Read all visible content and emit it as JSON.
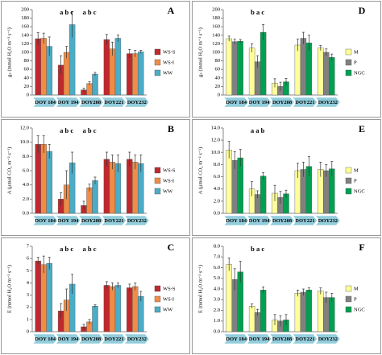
{
  "chart_data": [
    {
      "type": "bar",
      "label": "A",
      "y_label": "gₛ (mmol H₂O m⁻² s⁻¹)",
      "categories": [
        "DOY 184",
        "DOY 194",
        "DOY208",
        "DOY221",
        "DOY232"
      ],
      "series": [
        {
          "name": "WS-S",
          "color": "#c0282d",
          "values": [
            132,
            70,
            12,
            130,
            97
          ],
          "errors": [
            14,
            22,
            4,
            12,
            10
          ]
        },
        {
          "name": "WS-I",
          "color": "#f08c46",
          "values": [
            133,
            100,
            27,
            108,
            97
          ],
          "errors": [
            12,
            14,
            4,
            16,
            8
          ]
        },
        {
          "name": "WW",
          "color": "#4bacc6",
          "values": [
            114,
            165,
            49,
            133,
            101
          ],
          "errors": [
            22,
            30,
            4,
            8,
            4
          ]
        }
      ],
      "ylim": [
        0,
        200
      ],
      "yticks": [
        0,
        20,
        40,
        60,
        80,
        100,
        120,
        140,
        160,
        180,
        200
      ],
      "annotations": [
        {
          "text": "a b c",
          "category": "DOY 194"
        },
        {
          "text": "a b c",
          "category": "DOY208"
        }
      ]
    },
    {
      "type": "bar",
      "label": "B",
      "y_label": "A (µmol CO₂ m⁻² s⁻¹)",
      "categories": [
        "DOY 184",
        "DOY 194",
        "DOY208",
        "DOY221",
        "DOY232"
      ],
      "series": [
        {
          "name": "WS-S",
          "color": "#c0282d",
          "values": [
            9.7,
            2.0,
            1.1,
            7.6,
            7.6
          ],
          "errors": [
            1.2,
            0.9,
            0.6,
            1.0,
            1.0
          ]
        },
        {
          "name": "WS-I",
          "color": "#f08c46",
          "values": [
            9.7,
            4.0,
            3.6,
            7.2,
            7.2
          ],
          "errors": [
            1.2,
            2.0,
            0.5,
            1.0,
            1.0
          ]
        },
        {
          "name": "WW",
          "color": "#4bacc6",
          "values": [
            8.7,
            7.1,
            4.6,
            7.0,
            7.0
          ],
          "errors": [
            1.0,
            1.5,
            0.5,
            1.2,
            1.2
          ]
        }
      ],
      "ylim": [
        0,
        12
      ],
      "yticks": [
        {
          "value": 0,
          "label": "0.0"
        },
        {
          "value": 2,
          "label": "2.0"
        },
        {
          "value": 4,
          "label": "4.0"
        },
        {
          "value": 6,
          "label": "6.0"
        },
        {
          "value": 8,
          "label": "8.0"
        },
        {
          "value": 10,
          "label": "10.0"
        },
        {
          "value": 12,
          "label": "12.0"
        }
      ],
      "annotations": [
        {
          "text": "a b c",
          "category": "DOY 194"
        },
        {
          "text": "a b c",
          "category": "DOY208"
        }
      ]
    },
    {
      "type": "bar",
      "label": "C",
      "y_label": "E (mmol H₂O m⁻² s⁻¹)",
      "categories": [
        "DOY 184",
        "DOY 194",
        "DOY208",
        "DOY221",
        "DOY232"
      ],
      "series": [
        {
          "name": "WS-S",
          "color": "#c0282d",
          "values": [
            5.8,
            1.7,
            0.4,
            3.8,
            3.6
          ],
          "errors": [
            0.3,
            0.6,
            0.2,
            0.3,
            0.3
          ]
        },
        {
          "name": "WS-I",
          "color": "#f08c46",
          "values": [
            5.5,
            2.6,
            0.8,
            3.7,
            3.7
          ],
          "errors": [
            0.7,
            0.9,
            0.2,
            0.3,
            0.3
          ]
        },
        {
          "name": "WW",
          "color": "#4bacc6",
          "values": [
            5.6,
            3.9,
            2.1,
            3.8,
            2.9
          ],
          "errors": [
            0.5,
            0.8,
            0.1,
            0.2,
            0.4
          ]
        }
      ],
      "ylim": [
        0,
        7
      ],
      "yticks": [
        0,
        1,
        2,
        3,
        4,
        5,
        6,
        7
      ],
      "annotations": [
        {
          "text": "a b c",
          "category": "DOY 194"
        },
        {
          "text": "a b c",
          "category": "DOY208"
        }
      ]
    },
    {
      "type": "bar",
      "label": "D",
      "y_label": "gₛ (mmol H₂O m⁻² s⁻¹)",
      "categories": [
        "DOY 184",
        "DOY 194",
        "DOY208",
        "DOY221",
        "DOY232"
      ],
      "series": [
        {
          "name": "M",
          "color": "#ffff99",
          "values": [
            132,
            110,
            28,
            117,
            110
          ],
          "errors": [
            6,
            10,
            10,
            14,
            6
          ]
        },
        {
          "name": "P",
          "color": "#808080",
          "values": [
            125,
            78,
            20,
            133,
            100
          ],
          "errors": [
            6,
            14,
            10,
            14,
            8
          ]
        },
        {
          "name": "NGC",
          "color": "#00a050",
          "values": [
            126,
            147,
            31,
            122,
            88
          ],
          "errors": [
            4,
            18,
            8,
            18,
            8
          ]
        }
      ],
      "ylim": [
        0,
        200
      ],
      "yticks": [
        0,
        20,
        40,
        60,
        80,
        100,
        120,
        140,
        160,
        180,
        200
      ],
      "annotations": [
        {
          "text": "b a c",
          "category": "DOY 194"
        }
      ]
    },
    {
      "type": "bar",
      "label": "E",
      "y_label": "A (µmol CO₂ m⁻² s⁻¹)",
      "categories": [
        "DOY 184",
        "DOY 194",
        "DOY208",
        "DOY221",
        "DOY232"
      ],
      "series": [
        {
          "name": "M",
          "color": "#ffff99",
          "values": [
            10.4,
            4.0,
            3.3,
            7.0,
            7.2
          ],
          "errors": [
            1.4,
            1.2,
            1.3,
            1.2,
            1.2
          ]
        },
        {
          "name": "P",
          "color": "#808080",
          "values": [
            8.7,
            3.1,
            2.6,
            7.2,
            7.0
          ],
          "errors": [
            1.4,
            0.6,
            1.0,
            1.2,
            1.0
          ]
        },
        {
          "name": "NGC",
          "color": "#00a050",
          "values": [
            9.1,
            6.1,
            3.2,
            7.7,
            7.3
          ],
          "errors": [
            1.4,
            0.6,
            0.6,
            1.6,
            1.2
          ]
        }
      ],
      "ylim": [
        0,
        14
      ],
      "yticks": [
        {
          "value": 0,
          "label": "0.0"
        },
        {
          "value": 2,
          "label": "2.0"
        },
        {
          "value": 4,
          "label": "4.0"
        },
        {
          "value": 6,
          "label": "6.0"
        },
        {
          "value": 8,
          "label": "8.0"
        },
        {
          "value": 10,
          "label": "10.0"
        },
        {
          "value": 12,
          "label": "12.0"
        },
        {
          "value": 14,
          "label": "14.0"
        }
      ],
      "annotations": [
        {
          "text": "a a b",
          "category": "DOY 194"
        }
      ]
    },
    {
      "type": "bar",
      "label": "F",
      "y_label": "E (mmol H₂O m⁻² s⁻¹)",
      "categories": [
        "DOY 184",
        "DOY 194",
        "DOY208",
        "DOY221",
        "DOY232"
      ],
      "series": [
        {
          "name": "M",
          "color": "#ffff99",
          "values": [
            6.3,
            2.4,
            1.1,
            3.6,
            3.8
          ],
          "errors": [
            0.6,
            0.2,
            0.5,
            0.3,
            0.3
          ]
        },
        {
          "name": "P",
          "color": "#808080",
          "values": [
            4.9,
            1.8,
            1.0,
            3.7,
            3.2
          ],
          "errors": [
            1.0,
            0.3,
            0.5,
            0.3,
            0.5
          ]
        },
        {
          "name": "NGC",
          "color": "#00a050",
          "values": [
            5.6,
            3.9,
            1.1,
            3.9,
            3.2
          ],
          "errors": [
            1.0,
            0.3,
            0.5,
            0.2,
            0.4
          ]
        }
      ],
      "ylim": [
        0,
        8
      ],
      "yticks": [
        {
          "value": 0,
          "label": "0.0"
        },
        {
          "value": 1,
          "label": "1.0"
        },
        {
          "value": 2,
          "label": "2.0"
        },
        {
          "value": 3,
          "label": "3.0"
        },
        {
          "value": 4,
          "label": "4.0"
        },
        {
          "value": 5,
          "label": "5.0"
        },
        {
          "value": 6,
          "label": "6.0"
        },
        {
          "value": 7,
          "label": "7.0"
        },
        {
          "value": 8,
          "label": "8.0"
        }
      ],
      "annotations": [
        {
          "text": "b a c",
          "category": "DOY 194"
        }
      ]
    }
  ]
}
